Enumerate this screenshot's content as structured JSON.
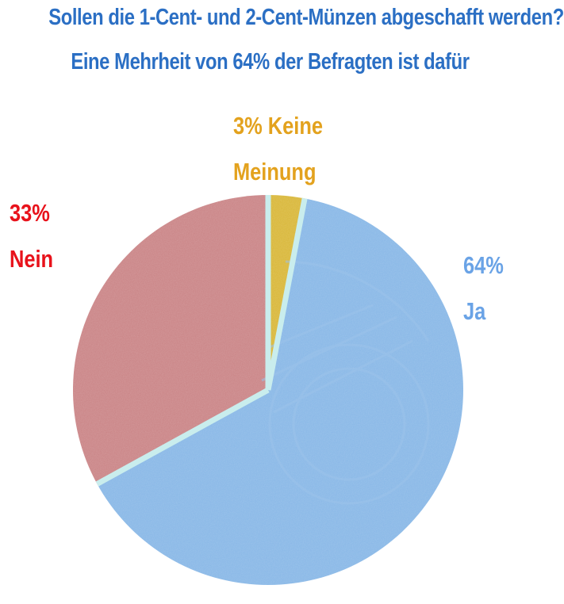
{
  "title": "Sollen die 1-Cent- und 2-Cent-Münzen abgeschafft werden?",
  "subtitle": "Eine Mehrheit von 64% der Befragten ist dafür",
  "colors": {
    "title": "#2b6fc4",
    "ja_label": "#6aa3e6",
    "nein_label": "#e8121b",
    "keine_label": "#e3a21e",
    "ja_slice": "#86b6e6",
    "nein_slice": "#c98284",
    "keine_slice": "#d8b636",
    "separator": "#c9eded",
    "coin_detail": "#9cc3ea"
  },
  "labels": {
    "ja_pct": "64%",
    "ja_name": "Ja",
    "nein_pct": "33%",
    "nein_name": "Nein",
    "keine_pct": "3% Keine",
    "keine_name": "Meinung"
  },
  "chart_data": {
    "type": "pie",
    "title": "Sollen die 1-Cent- und 2-Cent-Münzen abgeschafft werden?",
    "subtitle": "Eine Mehrheit von 64% der Befragten ist dafür",
    "start": "12 o'clock",
    "direction": "clockwise",
    "slices": [
      {
        "label": "Keine Meinung",
        "value": 3,
        "color": "#d8b636"
      },
      {
        "label": "Ja",
        "value": 64,
        "color": "#86b6e6"
      },
      {
        "label": "Nein",
        "value": 33,
        "color": "#c98284"
      }
    ]
  }
}
